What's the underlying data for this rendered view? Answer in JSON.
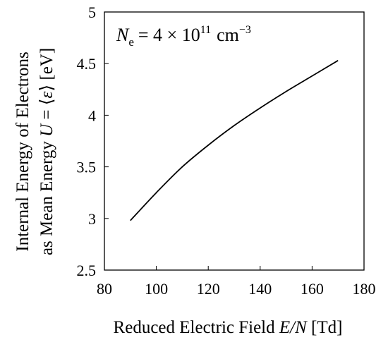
{
  "chart_data": {
    "type": "line",
    "annotation": {
      "symbol": "N",
      "subscript": "e",
      "text": "= 4 × 10",
      "exponent": "11",
      "unit": "cm",
      "unit_exponent": "−3"
    },
    "xlabel": {
      "prefix": "Reduced Electric Field ",
      "var": "E/N",
      "suffix": " [Td]"
    },
    "ylabel": {
      "line1": "Internal Energy of Electrons",
      "line2_prefix": "as Mean Energy ",
      "line2_var": "U",
      "line2_eq": " = ⟨",
      "line2_eps": "ε",
      "line2_suffix": "⟩ [eV]"
    },
    "xlim": [
      80,
      180
    ],
    "ylim": [
      2.5,
      5
    ],
    "xticks": [
      80,
      100,
      120,
      140,
      160,
      180
    ],
    "yticks": [
      "2.5",
      "3",
      "3.5",
      "4",
      "4.5",
      "5"
    ],
    "grid": false,
    "series": [
      {
        "x": [
          90,
          100,
          110,
          120,
          130,
          140,
          150,
          160,
          170
        ],
        "y": [
          2.98,
          3.25,
          3.5,
          3.71,
          3.9,
          4.07,
          4.23,
          4.38,
          4.53
        ]
      }
    ]
  }
}
